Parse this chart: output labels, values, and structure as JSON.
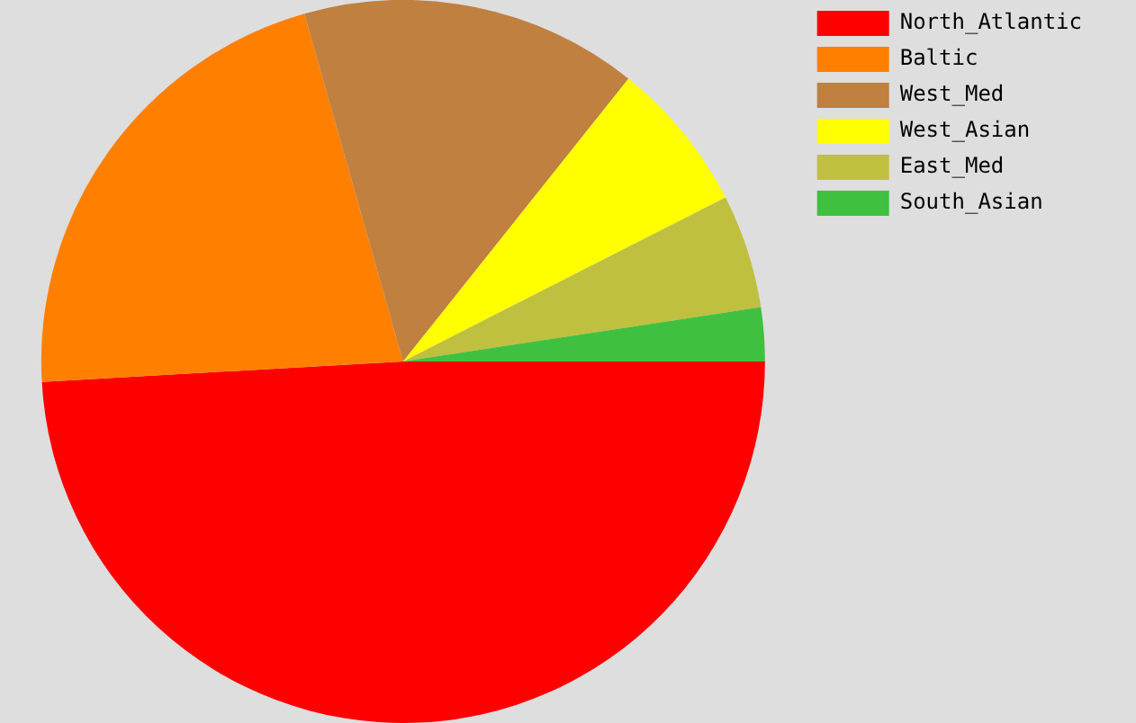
{
  "chart_data": {
    "type": "pie",
    "categories": [
      "North_Atlantic",
      "Baltic",
      "West_Med",
      "West_Asian",
      "East_Med",
      "South_Asian"
    ],
    "values": [
      49.1,
      21.5,
      15.1,
      6.8,
      5.1,
      2.4
    ],
    "colors": [
      "#ff0000",
      "#ff8000",
      "#c08040",
      "#ffff00",
      "#c0c040",
      "#40c040"
    ],
    "legend": "right"
  }
}
